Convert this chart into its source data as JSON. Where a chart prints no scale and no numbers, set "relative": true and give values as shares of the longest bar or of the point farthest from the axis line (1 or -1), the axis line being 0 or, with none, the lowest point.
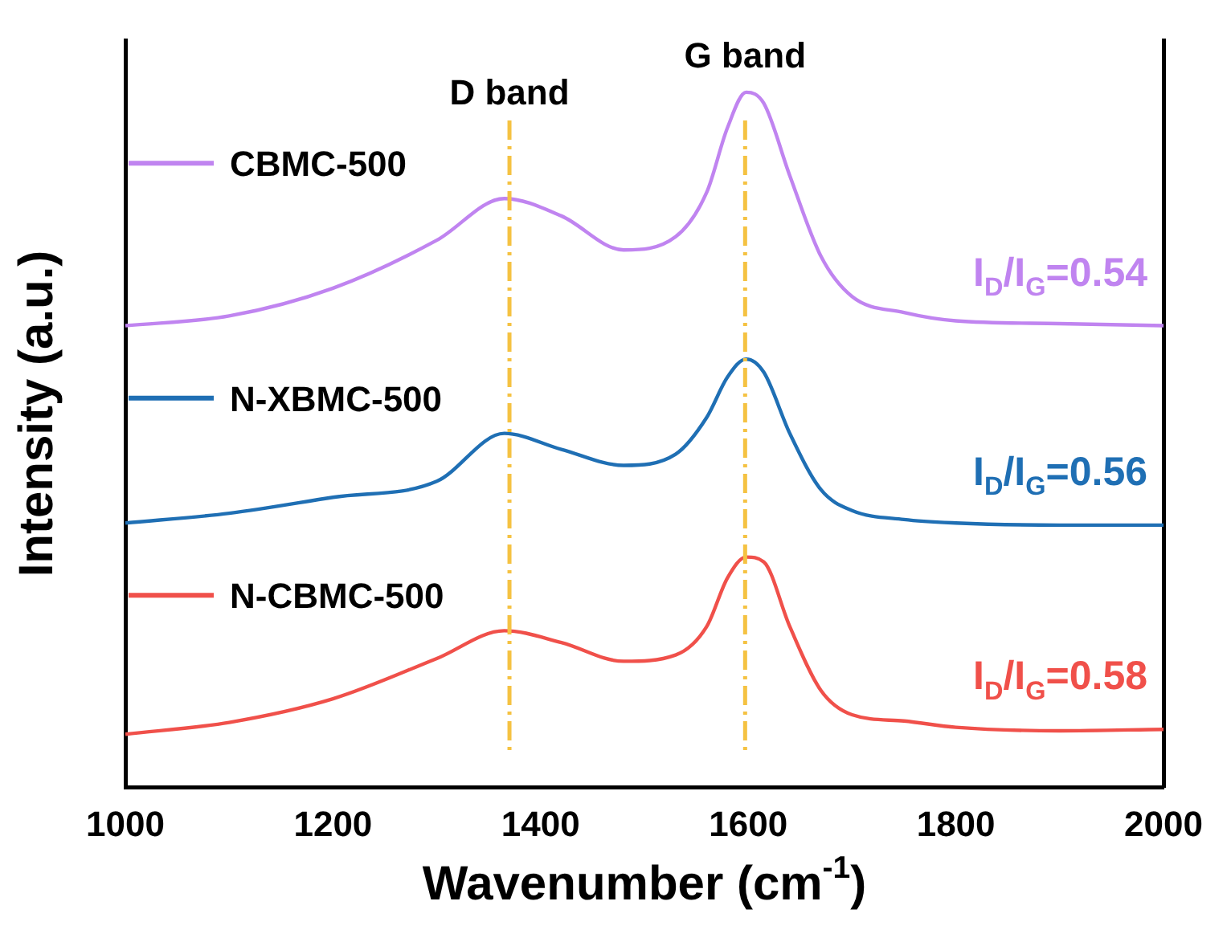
{
  "chart_data": {
    "type": "line",
    "xlabel": "Wavenumber (cm$^{-1}$)",
    "ylabel": "Intensity (a.u.)",
    "relative": true,
    "x": [
      1000,
      1100,
      1200,
      1300,
      1365,
      1420,
      1480,
      1530,
      1560,
      1580,
      1598,
      1615,
      1640,
      1670,
      1700,
      1750,
      1800,
      1900,
      2000
    ],
    "xlim": [
      1000,
      2000
    ],
    "xticks": [
      1000,
      1200,
      1400,
      1600,
      1800,
      2000
    ],
    "grid": false,
    "legend": "left",
    "marker": "none",
    "line_style": "solid",
    "series": [
      {
        "name": "CBMC-500",
        "color": "#c084f0",
        "values": [
          0.664,
          0.678,
          0.718,
          0.787,
          0.847,
          0.822,
          0.773,
          0.792,
          0.856,
          0.949,
          1,
          0.984,
          0.88,
          0.764,
          0.706,
          0.683,
          0.671,
          0.667,
          0.664
        ]
      },
      {
        "name": "N-XBMC-500",
        "color": "#1f6fb4",
        "values": [
          0.38,
          0.394,
          0.417,
          0.44,
          0.509,
          0.486,
          0.463,
          0.479,
          0.532,
          0.59,
          0.616,
          0.597,
          0.509,
          0.428,
          0.398,
          0.385,
          0.38,
          0.377,
          0.377
        ]
      },
      {
        "name": "N-CBMC-500",
        "color": "#f0504a",
        "values": [
          0.076,
          0.093,
          0.127,
          0.185,
          0.225,
          0.208,
          0.181,
          0.19,
          0.231,
          0.301,
          0.331,
          0.324,
          0.231,
          0.139,
          0.104,
          0.095,
          0.086,
          0.081,
          0.083
        ]
      }
    ],
    "ref_lines": [
      {
        "axis": "x",
        "value": 1370,
        "label": "D band",
        "color": "#f5c242",
        "line_style": "dashdot"
      },
      {
        "axis": "x",
        "value": 1597,
        "label": "G band",
        "color": "#f5c242",
        "line_style": "dashdot"
      }
    ],
    "annotations": [
      "I$_{D}$/I$_{G}$=0.54",
      "I$_{D}$/I$_{G}$=0.56",
      "I$_{D}$/I$_{G}$=0.58"
    ]
  }
}
